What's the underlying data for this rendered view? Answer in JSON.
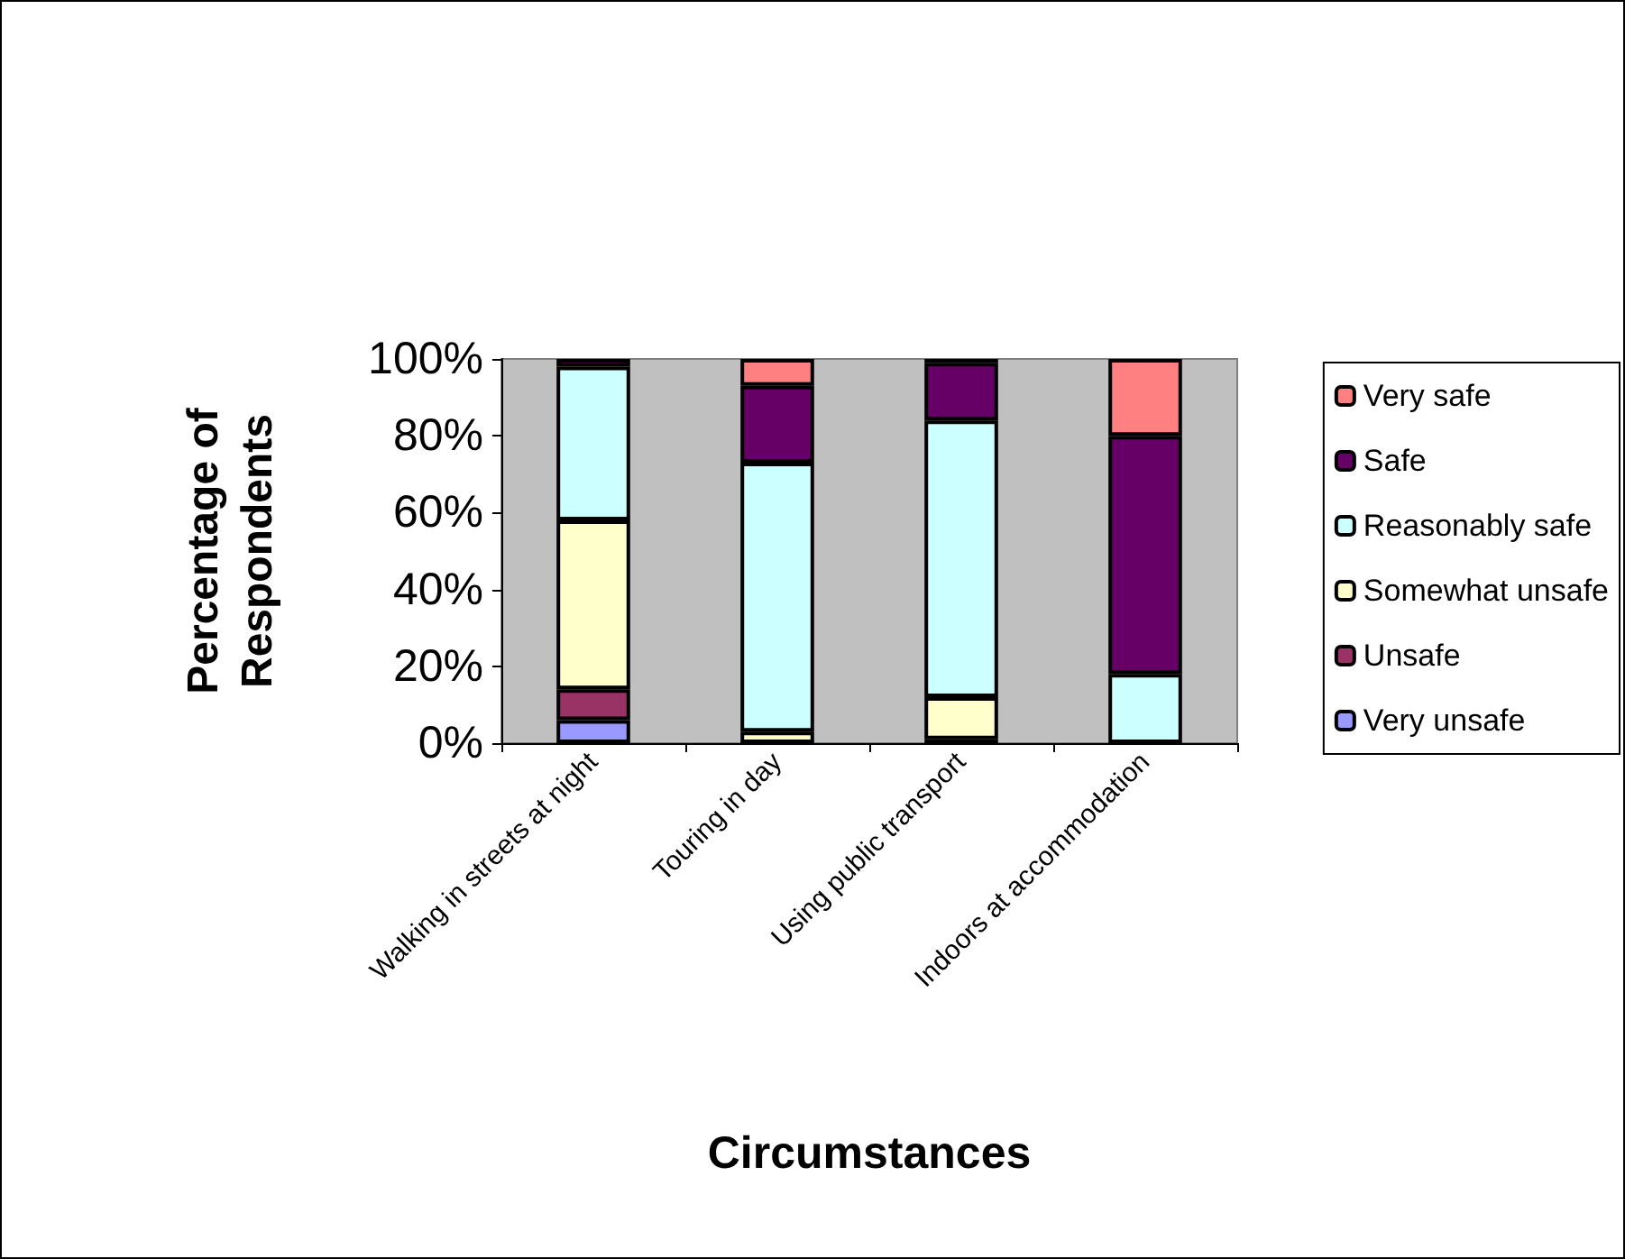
{
  "chart_data": {
    "type": "bar",
    "stacked": true,
    "xlabel": "Circumstances",
    "ylabel": "Percentage of Respondents",
    "categories": [
      "Walking in streets at night",
      "Touring in day",
      "Using public transport",
      "Indoors at accommodation"
    ],
    "series": [
      {
        "name": "Very unsafe",
        "color": "#9999ff",
        "values": [
          6,
          0,
          0,
          0
        ]
      },
      {
        "name": "Unsafe",
        "color": "#993366",
        "values": [
          8,
          0,
          1,
          0
        ]
      },
      {
        "name": "Somewhat unsafe",
        "color": "#ffffcc",
        "values": [
          44,
          3,
          11,
          0
        ]
      },
      {
        "name": "Reasonably safe",
        "color": "#ccffff",
        "values": [
          40,
          70,
          72,
          18
        ]
      },
      {
        "name": "Safe",
        "color": "#660066",
        "values": [
          2,
          20,
          15,
          62
        ]
      },
      {
        "name": "Very safe",
        "color": "#ff8080",
        "values": [
          0,
          7,
          1,
          20
        ]
      }
    ],
    "ylim": [
      0,
      100
    ],
    "yticks": [
      {
        "value": 0,
        "label": "0%"
      },
      {
        "value": 20,
        "label": "20%"
      },
      {
        "value": 40,
        "label": "40%"
      },
      {
        "value": 60,
        "label": "60%"
      },
      {
        "value": 80,
        "label": "80%"
      },
      {
        "value": 100,
        "label": "100%"
      }
    ],
    "grid": false,
    "legend": "right"
  }
}
